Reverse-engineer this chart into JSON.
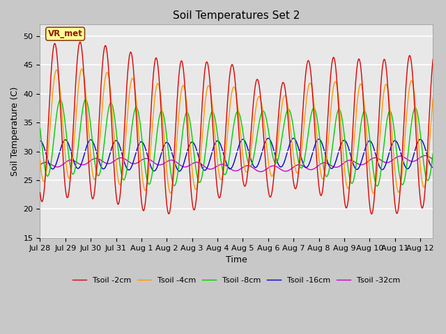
{
  "title": "Soil Temperatures Set 2",
  "xlabel": "Time",
  "ylabel": "Soil Temperature (C)",
  "ylim": [
    15,
    52
  ],
  "yticks": [
    15,
    20,
    25,
    30,
    35,
    40,
    45,
    50
  ],
  "annotation": "VR_met",
  "legend": [
    "Tsoil -2cm",
    "Tsoil -4cm",
    "Tsoil -8cm",
    "Tsoil -16cm",
    "Tsoil -32cm"
  ],
  "colors": [
    "#dd0000",
    "#ff9900",
    "#00cc00",
    "#0000cc",
    "#cc00cc"
  ],
  "plot_bg_color": "#e8e8e8",
  "fig_bg_color": "#c8c8c8",
  "line_width": 1.0,
  "tick_labels": [
    "Jul 28",
    "Jul 29",
    "Jul 30",
    "Jul 31",
    "Aug 1",
    "Aug 2",
    "Aug 3",
    "Aug 4",
    "Aug 5",
    "Aug 6",
    "Aug 7",
    "Aug 8",
    "Aug 9",
    "Aug 10",
    "Aug 11",
    "Aug 12"
  ]
}
